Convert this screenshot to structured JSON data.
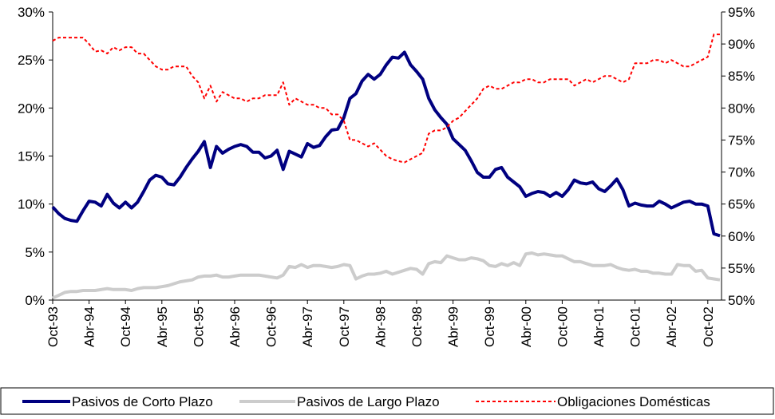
{
  "chart_data": {
    "type": "line",
    "categories": [
      "Oct-93",
      null,
      null,
      null,
      null,
      null,
      "Abr-94",
      null,
      null,
      null,
      null,
      null,
      "Oct-94",
      null,
      null,
      null,
      null,
      null,
      "Abr-95",
      null,
      null,
      null,
      null,
      null,
      "Oct-95",
      null,
      null,
      null,
      null,
      null,
      "Abr-96",
      null,
      null,
      null,
      null,
      null,
      "Oct-96",
      null,
      null,
      null,
      null,
      null,
      "Abr-97",
      null,
      null,
      null,
      null,
      null,
      "Oct-97",
      null,
      null,
      null,
      null,
      null,
      "Abr-98",
      null,
      null,
      null,
      null,
      null,
      "Oct-98",
      null,
      null,
      null,
      null,
      null,
      "Abr-99",
      null,
      null,
      null,
      null,
      null,
      "Oct-99",
      null,
      null,
      null,
      null,
      null,
      "Abr-00",
      null,
      null,
      null,
      null,
      null,
      "Oct-00",
      null,
      null,
      null,
      null,
      null,
      "Abr-01",
      null,
      null,
      null,
      null,
      null,
      "Oct-01",
      null,
      null,
      null,
      null,
      null,
      "Abr-02",
      null,
      null,
      null,
      null,
      null,
      "Oct-02",
      null,
      null
    ],
    "series": [
      {
        "name": "Pasivos de Corto Plazo",
        "color": "#000080",
        "width": 4,
        "dash": "none",
        "axis": "y",
        "values": [
          9.7,
          9.0,
          8.5,
          8.3,
          8.2,
          9.3,
          10.3,
          10.2,
          9.8,
          11.0,
          10.1,
          9.6,
          10.2,
          9.6,
          10.2,
          11.3,
          12.5,
          13.0,
          12.8,
          12.1,
          12.0,
          12.8,
          13.8,
          14.7,
          15.5,
          16.5,
          13.8,
          16.0,
          15.3,
          15.7,
          16.0,
          16.2,
          16.0,
          15.4,
          15.4,
          14.8,
          15.0,
          15.6,
          13.6,
          15.5,
          15.2,
          14.9,
          16.3,
          15.9,
          16.1,
          17.0,
          17.7,
          17.8,
          19.0,
          21.0,
          21.5,
          22.8,
          23.5,
          23.0,
          23.5,
          24.5,
          25.3,
          25.2,
          25.8,
          24.5,
          23.8,
          23.0,
          21.0,
          19.8,
          19.0,
          18.3,
          16.8,
          16.2,
          15.6,
          14.5,
          13.3,
          12.8,
          12.8,
          13.6,
          13.8,
          12.8,
          12.3,
          11.8,
          10.8,
          11.1,
          11.3,
          11.2,
          10.8,
          11.2,
          10.8,
          11.5,
          12.5,
          12.2,
          12.1,
          12.3,
          11.6,
          11.3,
          11.9,
          12.6,
          11.5,
          9.8,
          10.1,
          9.9,
          9.8,
          9.8,
          10.3,
          10.0,
          9.6,
          9.9,
          10.2,
          10.3,
          10.0,
          10.0,
          9.8,
          6.9,
          6.7
        ]
      },
      {
        "name": "Pasivos de Largo Plazo",
        "color": "#cccccc",
        "width": 4,
        "dash": "none",
        "axis": "y",
        "values": [
          0.2,
          0.5,
          0.8,
          0.9,
          0.9,
          1.0,
          1.0,
          1.0,
          1.1,
          1.2,
          1.1,
          1.1,
          1.1,
          1.0,
          1.2,
          1.3,
          1.3,
          1.3,
          1.4,
          1.5,
          1.7,
          1.9,
          2.0,
          2.1,
          2.4,
          2.5,
          2.5,
          2.6,
          2.4,
          2.4,
          2.5,
          2.6,
          2.6,
          2.6,
          2.6,
          2.5,
          2.4,
          2.3,
          2.6,
          3.5,
          3.4,
          3.7,
          3.4,
          3.6,
          3.6,
          3.5,
          3.4,
          3.5,
          3.7,
          3.6,
          2.2,
          2.5,
          2.7,
          2.7,
          2.8,
          3.0,
          2.7,
          2.9,
          3.1,
          3.3,
          3.2,
          2.7,
          3.8,
          4.0,
          3.9,
          4.6,
          4.4,
          4.2,
          4.2,
          4.4,
          4.3,
          4.1,
          3.6,
          3.5,
          3.8,
          3.6,
          3.9,
          3.6,
          4.8,
          4.9,
          4.7,
          4.8,
          4.7,
          4.6,
          4.6,
          4.3,
          4.0,
          4.0,
          3.8,
          3.6,
          3.6,
          3.6,
          3.7,
          3.4,
          3.2,
          3.1,
          3.2,
          3.0,
          3.0,
          2.8,
          2.8,
          2.7,
          2.7,
          3.7,
          3.6,
          3.6,
          3.0,
          3.1,
          2.3,
          2.2,
          2.1
        ]
      },
      {
        "name": "Obligaciones Domésticas",
        "color": "#ff0000",
        "width": 2,
        "dash": "4 3",
        "axis": "y2",
        "values": [
          90.5,
          91,
          91,
          91,
          91,
          91,
          90,
          88.8,
          89,
          88.5,
          89.5,
          89,
          89.5,
          89.5,
          88.5,
          88.5,
          87.5,
          86.5,
          86,
          86,
          86.5,
          86.5,
          86.5,
          85,
          84,
          81.5,
          83.5,
          81,
          82.5,
          82,
          81.5,
          81.5,
          81,
          81.5,
          81.5,
          82,
          82,
          82,
          84,
          80.5,
          81.5,
          81,
          80.5,
          80.5,
          80,
          80,
          79,
          79,
          78,
          75,
          75,
          74.5,
          74,
          74.5,
          73.5,
          72.5,
          72,
          71.7,
          71.5,
          72,
          72.5,
          73,
          76,
          76.5,
          76.5,
          77,
          78,
          78.5,
          79.5,
          80.5,
          81.5,
          83,
          83.5,
          83,
          83,
          83.5,
          84,
          84,
          84.5,
          84.5,
          84,
          84,
          84.5,
          84.5,
          84.5,
          84.5,
          83.5,
          84,
          84.5,
          84,
          84.5,
          85,
          85,
          84.5,
          84,
          84.5,
          87,
          87,
          87,
          87.5,
          87.5,
          87,
          87.5,
          87,
          86.5,
          86.5,
          87,
          87.5,
          88,
          91.5,
          91.5
        ]
      }
    ],
    "ylim": [
      0,
      30
    ],
    "yticks": [
      {
        "value": 0,
        "label": "0%"
      },
      {
        "value": 5,
        "label": "5%"
      },
      {
        "value": 10,
        "label": "10%"
      },
      {
        "value": 15,
        "label": "15%"
      },
      {
        "value": 20,
        "label": "20%"
      },
      {
        "value": 25,
        "label": "25%"
      },
      {
        "value": 30,
        "label": "30%"
      }
    ],
    "y2lim": [
      50,
      95
    ],
    "y2ticks": [
      {
        "value": 50,
        "label": "50%"
      },
      {
        "value": 55,
        "label": "55%"
      },
      {
        "value": 60,
        "label": "60%"
      },
      {
        "value": 65,
        "label": "65%"
      },
      {
        "value": 70,
        "label": "70%"
      },
      {
        "value": 75,
        "label": "75%"
      },
      {
        "value": 80,
        "label": "80%"
      },
      {
        "value": 85,
        "label": "85%"
      },
      {
        "value": 90,
        "label": "90%"
      },
      {
        "value": 95,
        "label": "95%"
      }
    ],
    "legend": "bottom"
  }
}
